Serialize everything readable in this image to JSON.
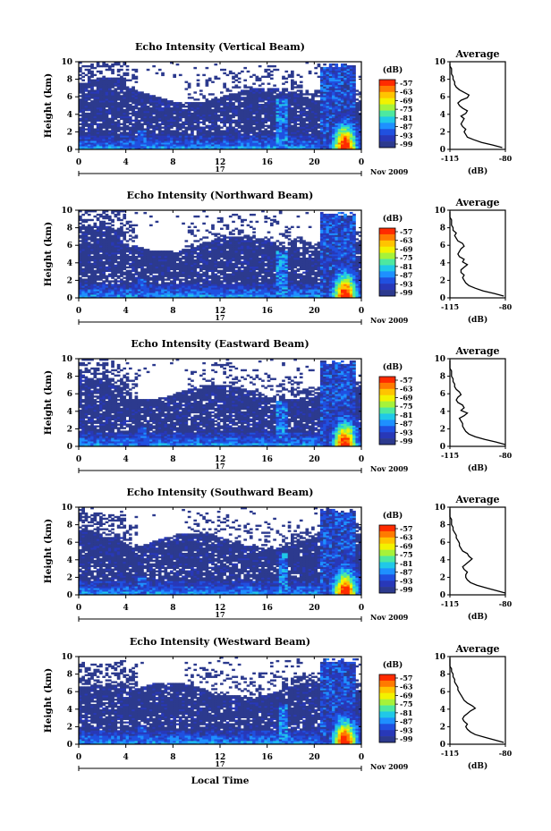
{
  "chart_data": {
    "type": "heatmap",
    "panels": [
      {
        "title": "Echo Intensity (Vertical Beam)",
        "seed": 11
      },
      {
        "title": "Echo Intensity (Northward Beam)",
        "seed": 23
      },
      {
        "title": "Echo Intensity (Eastward Beam)",
        "seed": 37
      },
      {
        "title": "Echo Intensity (Southward Beam)",
        "seed": 41
      },
      {
        "title": "Echo Intensity (Westward Beam)",
        "seed": 59
      }
    ],
    "ylabel": "Height (km)",
    "xlabel": "Local Time",
    "x_ticks": [
      "0",
      "4",
      "8",
      "12",
      "16",
      "20",
      "0"
    ],
    "xlim": [
      0,
      24
    ],
    "y_ticks": [
      "0",
      "2",
      "4",
      "6",
      "8",
      "10"
    ],
    "ylim": [
      0,
      10
    ],
    "date_label": "17",
    "month_year": "Nov 2009",
    "colorbar": {
      "unit": "(dB)",
      "ticks": [
        "-57",
        "-63",
        "-69",
        "-75",
        "-81",
        "-87",
        "-93",
        "-99"
      ],
      "colors": [
        "#ff2b00",
        "#ff7a00",
        "#ffc400",
        "#f2f200",
        "#a6f23a",
        "#4de8a0",
        "#20c8e8",
        "#1e90ff",
        "#2050e0",
        "#2838b8",
        "#2c3a8e"
      ]
    },
    "average": {
      "title": "Average",
      "xlabel": "(dB)",
      "x_ticks": [
        "-115",
        "-80"
      ],
      "xlim": [
        -115,
        -80
      ],
      "y_ticks": [
        "0",
        "2",
        "4",
        "6",
        "8",
        "10"
      ],
      "profiles": [
        {
          "height": [
            0.2,
            0.5,
            0.8,
            1.1,
            1.4,
            1.7,
            2.0,
            2.3,
            2.6,
            2.9,
            3.2,
            3.5,
            3.8,
            4.1,
            4.4,
            4.7,
            5.0,
            5.3,
            5.6,
            5.9,
            6.2,
            6.5,
            6.8,
            7.1,
            7.4,
            7.7,
            8.0,
            8.3,
            8.6,
            8.9,
            9.2,
            9.5,
            9.8
          ],
          "value": [
            -82,
            -88,
            -95,
            -100,
            -104,
            -105,
            -106,
            -105,
            -107,
            -108,
            -107,
            -106,
            -108,
            -105,
            -104,
            -107,
            -109,
            -110,
            -108,
            -104,
            -103,
            -106,
            -109,
            -111,
            -112,
            -112,
            -113,
            -113,
            -114,
            -114,
            -114,
            -115,
            -115
          ]
        },
        {
          "height": [
            0.2,
            0.5,
            0.8,
            1.1,
            1.4,
            1.7,
            2.0,
            2.3,
            2.6,
            2.9,
            3.2,
            3.5,
            3.8,
            4.1,
            4.4,
            4.7,
            5.0,
            5.3,
            5.6,
            5.9,
            6.2,
            6.5,
            6.8,
            7.1,
            7.4,
            7.7,
            8.0,
            8.3,
            8.6,
            8.9,
            9.2,
            9.5,
            9.8
          ],
          "value": [
            -81,
            -87,
            -94,
            -99,
            -103,
            -105,
            -106,
            -107,
            -106,
            -108,
            -108,
            -106,
            -104,
            -107,
            -106,
            -109,
            -110,
            -109,
            -108,
            -106,
            -107,
            -110,
            -111,
            -112,
            -111,
            -113,
            -113,
            -114,
            -114,
            -114,
            -115,
            -115,
            -115
          ]
        },
        {
          "height": [
            0.2,
            0.5,
            0.8,
            1.1,
            1.4,
            1.7,
            2.0,
            2.3,
            2.6,
            2.9,
            3.2,
            3.5,
            3.8,
            4.1,
            4.4,
            4.7,
            5.0,
            5.3,
            5.6,
            5.9,
            6.2,
            6.5,
            6.8,
            7.1,
            7.4,
            7.7,
            8.0,
            8.3,
            8.6,
            8.9,
            9.2,
            9.5,
            9.8
          ],
          "value": [
            -80,
            -86,
            -93,
            -99,
            -103,
            -105,
            -106,
            -107,
            -107,
            -108,
            -109,
            -106,
            -104,
            -108,
            -106,
            -107,
            -110,
            -111,
            -110,
            -108,
            -109,
            -111,
            -112,
            -112,
            -113,
            -113,
            -114,
            -114,
            -114,
            -115,
            -115,
            -115,
            -115
          ]
        },
        {
          "height": [
            0.2,
            0.5,
            0.8,
            1.1,
            1.4,
            1.7,
            2.0,
            2.3,
            2.6,
            2.9,
            3.2,
            3.5,
            3.8,
            4.1,
            4.4,
            4.7,
            5.0,
            5.3,
            5.6,
            5.9,
            6.2,
            6.5,
            6.8,
            7.1,
            7.4,
            7.7,
            8.0,
            8.3,
            8.6,
            8.9,
            9.2,
            9.5,
            9.8
          ],
          "value": [
            -80,
            -86,
            -92,
            -98,
            -102,
            -104,
            -105,
            -105,
            -104,
            -106,
            -107,
            -105,
            -103,
            -101,
            -103,
            -104,
            -107,
            -108,
            -109,
            -109,
            -110,
            -111,
            -111,
            -112,
            -113,
            -113,
            -114,
            -114,
            -114,
            -115,
            -115,
            -115,
            -115
          ]
        },
        {
          "height": [
            0.2,
            0.5,
            0.8,
            1.1,
            1.4,
            1.7,
            2.0,
            2.3,
            2.6,
            2.9,
            3.2,
            3.5,
            3.8,
            4.1,
            4.4,
            4.7,
            5.0,
            5.3,
            5.6,
            5.9,
            6.2,
            6.5,
            6.8,
            7.1,
            7.4,
            7.7,
            8.0,
            8.3,
            8.6,
            8.9,
            9.2,
            9.5,
            9.8
          ],
          "value": [
            -81,
            -87,
            -93,
            -99,
            -102,
            -104,
            -105,
            -104,
            -106,
            -107,
            -106,
            -104,
            -102,
            -99,
            -101,
            -104,
            -106,
            -107,
            -108,
            -109,
            -110,
            -110,
            -111,
            -112,
            -112,
            -113,
            -113,
            -114,
            -114,
            -115,
            -115,
            -115,
            -115
          ]
        }
      ]
    }
  }
}
